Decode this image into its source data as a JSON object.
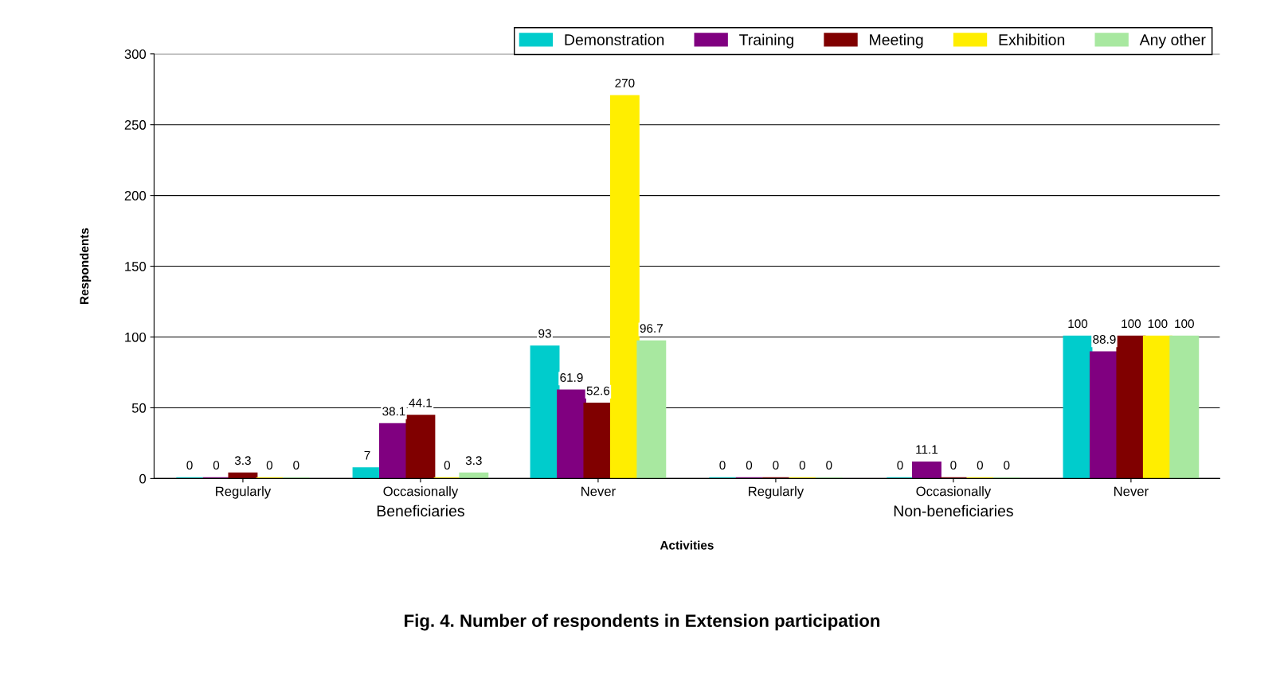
{
  "chart_data": {
    "type": "bar",
    "title": "Fig. 4. Number of respondents in Extension participation",
    "xlabel": "Activities",
    "ylabel": "Respondents",
    "categories": [
      "Regularly",
      "Occasionally",
      "Never",
      "Regularly",
      "Occasionally",
      "Never"
    ],
    "series": [
      {
        "name": "Demonstration",
        "color": "#00cccc",
        "values": [
          0,
          7,
          93,
          0,
          0,
          100
        ]
      },
      {
        "name": "Training",
        "color": "#800080",
        "values": [
          0,
          38.1,
          61.9,
          0,
          11.1,
          88.9
        ]
      },
      {
        "name": "Meeting",
        "color": "#800000",
        "values": [
          3.3,
          44.1,
          52.6,
          0,
          0,
          100
        ]
      },
      {
        "name": "Exhibition",
        "color": "#ffee00",
        "values": [
          0,
          0,
          270,
          0,
          0,
          100
        ]
      },
      {
        "name": "Any other",
        "color": "#a8e8a0",
        "values": [
          0,
          3.3,
          96.7,
          0,
          0,
          100
        ]
      }
    ],
    "annotations": [
      "Beneficiaries",
      "Non-beneficiaries"
    ],
    "ylim": [
      0,
      300
    ],
    "yticks": [
      0,
      50,
      100,
      150,
      200,
      250,
      300
    ],
    "grid": "y",
    "legend": "top right",
    "data_labels": true
  }
}
